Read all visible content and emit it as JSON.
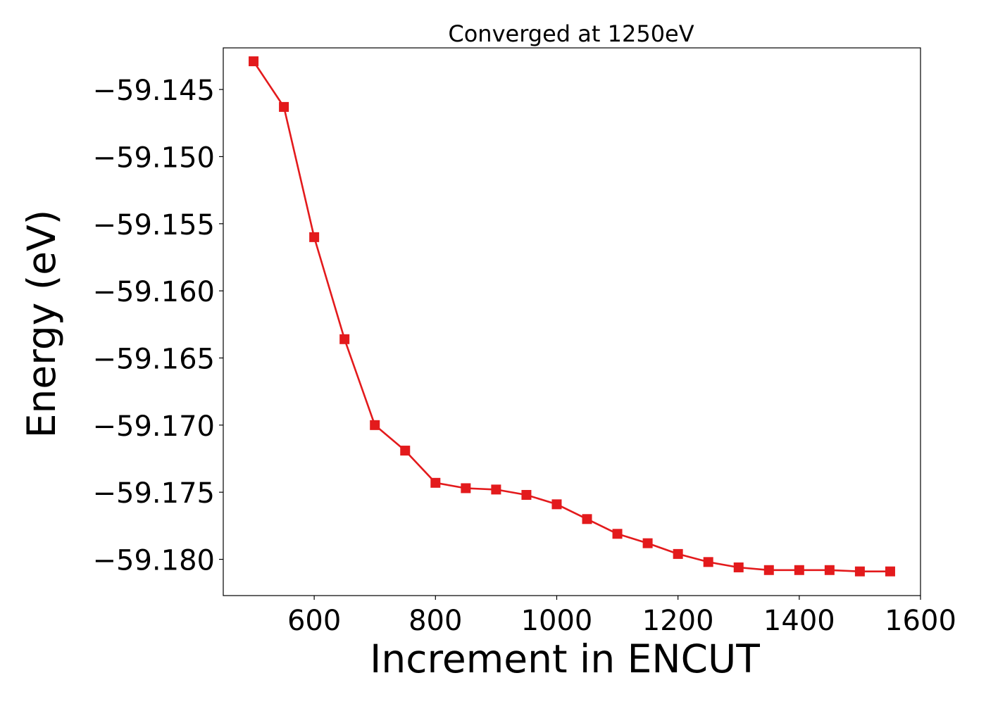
{
  "chart_data": {
    "type": "line",
    "title": "Converged at 1250eV",
    "xlabel": "Increment in ENCUT",
    "ylabel": "Energy (eV)",
    "xlim": [
      450,
      1600
    ],
    "ylim": [
      -59.1827,
      -59.1419
    ],
    "x_ticks": [
      600,
      800,
      1000,
      1200,
      1400,
      1600
    ],
    "x_tick_labels": [
      "600",
      "800",
      "1000",
      "1200",
      "1400",
      "1600"
    ],
    "y_ticks": [
      -59.145,
      -59.15,
      -59.155,
      -59.16,
      -59.165,
      -59.17,
      -59.175,
      -59.18
    ],
    "y_tick_labels": [
      "−59.145",
      "−59.150",
      "−59.155",
      "−59.160",
      "−59.165",
      "−59.170",
      "−59.175",
      "−59.180"
    ],
    "grid": false,
    "series": [
      {
        "color": "#e31a1c",
        "marker": "square",
        "x": [
          500,
          550,
          600,
          650,
          700,
          750,
          800,
          850,
          900,
          950,
          1000,
          1050,
          1100,
          1150,
          1200,
          1250,
          1300,
          1350,
          1400,
          1450,
          1500,
          1550
        ],
        "y": [
          -59.1429,
          -59.1463,
          -59.156,
          -59.1636,
          -59.17,
          -59.1719,
          -59.1743,
          -59.1747,
          -59.1748,
          -59.1752,
          -59.1759,
          -59.177,
          -59.1781,
          -59.1788,
          -59.1796,
          -59.1802,
          -59.1806,
          -59.1808,
          -59.1808,
          -59.1808,
          -59.1809,
          -59.1809
        ]
      }
    ]
  }
}
